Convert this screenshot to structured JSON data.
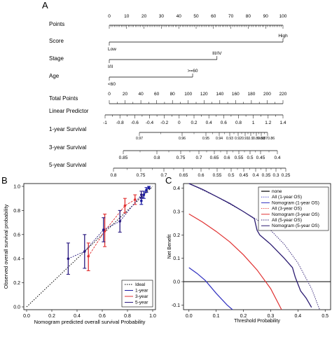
{
  "panels": {
    "A": "A",
    "B": "B",
    "C": "C"
  },
  "nomogram": {
    "rows": [
      {
        "label": "Points",
        "ticks": [
          "0",
          "10",
          "20",
          "30",
          "40",
          "50",
          "60",
          "70",
          "80",
          "90",
          "100"
        ],
        "values": [
          0,
          10,
          20,
          30,
          40,
          50,
          60,
          70,
          80,
          90,
          100
        ]
      },
      {
        "label": "Score",
        "start_label": "Low",
        "end_label": "High",
        "start_points": 0,
        "end_points": 100
      },
      {
        "label": "Stage",
        "start_label": "I/II",
        "end_label": "III/IV",
        "start_points": 0,
        "end_points": 62
      },
      {
        "label": "Age",
        "start_label": "<60",
        "end_label": ">=60",
        "start_points": 0,
        "end_points": 48
      },
      {
        "label": "Total Points",
        "ticks": [
          "0",
          "20",
          "40",
          "60",
          "80",
          "100",
          "120",
          "140",
          "160",
          "180",
          "200",
          "220"
        ],
        "values": [
          0,
          20,
          40,
          60,
          80,
          100,
          120,
          140,
          160,
          180,
          200,
          220
        ]
      },
      {
        "label": "Linear Predictor",
        "ticks": [
          "-1",
          "-0.8",
          "-0.6",
          "-0.4",
          "-0.2",
          "0",
          "0.2",
          "0.4",
          "0.6",
          "0.8",
          "1",
          "1.2",
          "1.4"
        ],
        "values": [
          -1,
          -0.8,
          -0.6,
          -0.4,
          -0.2,
          0,
          0.2,
          0.4,
          0.6,
          0.8,
          1,
          1.2,
          1.4
        ]
      },
      {
        "label": "1-year Survival",
        "ticks": [
          "0.97",
          "0.96",
          "0.95",
          "0.94",
          "0.93",
          "0.92",
          "0.91",
          "0.9",
          "0.89",
          "0.88",
          "0.870.86"
        ]
      },
      {
        "label": "3-year Survival",
        "ticks": [
          "0.85",
          "0.8",
          "0.75",
          "0.7",
          "0.65",
          "0.6",
          "0.55",
          "0.5",
          "0.45",
          "0.4"
        ]
      },
      {
        "label": "5-year Survival",
        "ticks": [
          "0.8",
          "0.75",
          "0.7",
          "0.65",
          "0.6",
          "0.55",
          "0.5",
          "0.45",
          "0.4",
          "0.35",
          "0.3",
          "0.25"
        ]
      }
    ]
  },
  "chart_data": [
    {
      "type": "line",
      "panel": "B",
      "xlabel": "Nomogram predicted overall survival Probability",
      "ylabel": "Observed overall survival probability",
      "xlim": [
        0,
        1
      ],
      "ylim": [
        0,
        1
      ],
      "xticks": [
        "0.0",
        "0.2",
        "0.4",
        "0.6",
        "0.8",
        "1.0"
      ],
      "yticks": [
        "0.0",
        "0.2",
        "0.4",
        "0.6",
        "0.8",
        "1.0"
      ],
      "legend": [
        "Ideal",
        "1-year",
        "3-year",
        "5-year"
      ],
      "legend_position": "bottom-right",
      "colors": {
        "ideal": "#000000",
        "1-year": "#1a1aa0",
        "3-year": "#e03030",
        "5-year": "#2a1a80"
      },
      "series": [
        {
          "name": "Ideal",
          "x": [
            0,
            1
          ],
          "y": [
            0,
            1
          ]
        },
        {
          "name": "1-year",
          "x": [
            0.91,
            0.93,
            0.95,
            0.97
          ],
          "y": [
            0.88,
            0.93,
            0.97,
            0.99
          ],
          "lo": [
            0.85,
            0.9,
            0.95,
            0.98
          ],
          "hi": [
            0.91,
            0.96,
            0.99,
            1.0
          ]
        },
        {
          "name": "3-year",
          "x": [
            0.49,
            0.62,
            0.78,
            0.86
          ],
          "y": [
            0.42,
            0.63,
            0.84,
            0.89
          ],
          "lo": [
            0.3,
            0.5,
            0.78,
            0.85
          ],
          "hi": [
            0.53,
            0.77,
            0.9,
            0.93
          ]
        },
        {
          "name": "5-year",
          "x": [
            0.33,
            0.46,
            0.61,
            0.74,
            0.91
          ],
          "y": [
            0.4,
            0.46,
            0.64,
            0.71,
            0.93
          ],
          "lo": [
            0.27,
            0.32,
            0.54,
            0.62,
            0.9
          ],
          "hi": [
            0.53,
            0.6,
            0.74,
            0.8,
            0.96
          ]
        }
      ]
    },
    {
      "type": "line",
      "panel": "C",
      "xlabel": "Threshold Probability",
      "ylabel": "Net Benefit",
      "xlim": [
        -0.02,
        0.52
      ],
      "ylim": [
        -0.12,
        0.42
      ],
      "xticks": [
        "0.0",
        "0.1",
        "0.2",
        "0.3",
        "0.4",
        "0.5"
      ],
      "yticks": [
        "-0.1",
        "0.0",
        "0.1",
        "0.2",
        "0.3",
        "0.4"
      ],
      "legend": [
        "none",
        "All (1-year OS)",
        "Nomogram (1-year OS)",
        "All (3-year OS)",
        "Nomogram (3-year OS)",
        "All (5-year OS)",
        "Nomogram (5-year OS)"
      ],
      "legend_position": "top-right",
      "colors": {
        "none": "#000000",
        "all-1": "#3030c0",
        "nomo-1": "#3030c0",
        "all-3": "#e03030",
        "nomo-3": "#e03030",
        "all-5": "#2a1a70",
        "nomo-5": "#2a1a70"
      },
      "series": [
        {
          "name": "none",
          "x": [
            -0.02,
            0.52
          ],
          "y": [
            0,
            0
          ]
        },
        {
          "name": "Nomogram (1-year OS)",
          "x": [
            0.0,
            0.03,
            0.06,
            0.1,
            0.14,
            0.16
          ],
          "y": [
            0.06,
            0.035,
            0.005,
            -0.05,
            -0.1,
            -0.12
          ]
        },
        {
          "name": "Nomogram (3-year OS)",
          "x": [
            0.0,
            0.05,
            0.1,
            0.15,
            0.2,
            0.25,
            0.3,
            0.34
          ],
          "y": [
            0.29,
            0.255,
            0.215,
            0.17,
            0.115,
            0.05,
            -0.03,
            -0.12
          ]
        },
        {
          "name": "All (5-year OS)",
          "x": [
            0.0,
            0.1,
            0.2,
            0.25,
            0.3,
            0.35,
            0.4,
            0.45,
            0.48
          ],
          "y": [
            0.42,
            0.365,
            0.3,
            0.265,
            0.22,
            0.16,
            0.08,
            -0.03,
            -0.12
          ]
        },
        {
          "name": "Nomogram (5-year OS)",
          "x": [
            0.0,
            0.05,
            0.1,
            0.15,
            0.2,
            0.24,
            0.25,
            0.26,
            0.3,
            0.35,
            0.38,
            0.39,
            0.4,
            0.41,
            0.43,
            0.45
          ],
          "y": [
            0.42,
            0.395,
            0.365,
            0.335,
            0.3,
            0.27,
            0.22,
            0.2,
            0.16,
            0.1,
            0.06,
            0.02,
            -0.01,
            -0.04,
            -0.07,
            -0.11
          ]
        }
      ]
    }
  ]
}
